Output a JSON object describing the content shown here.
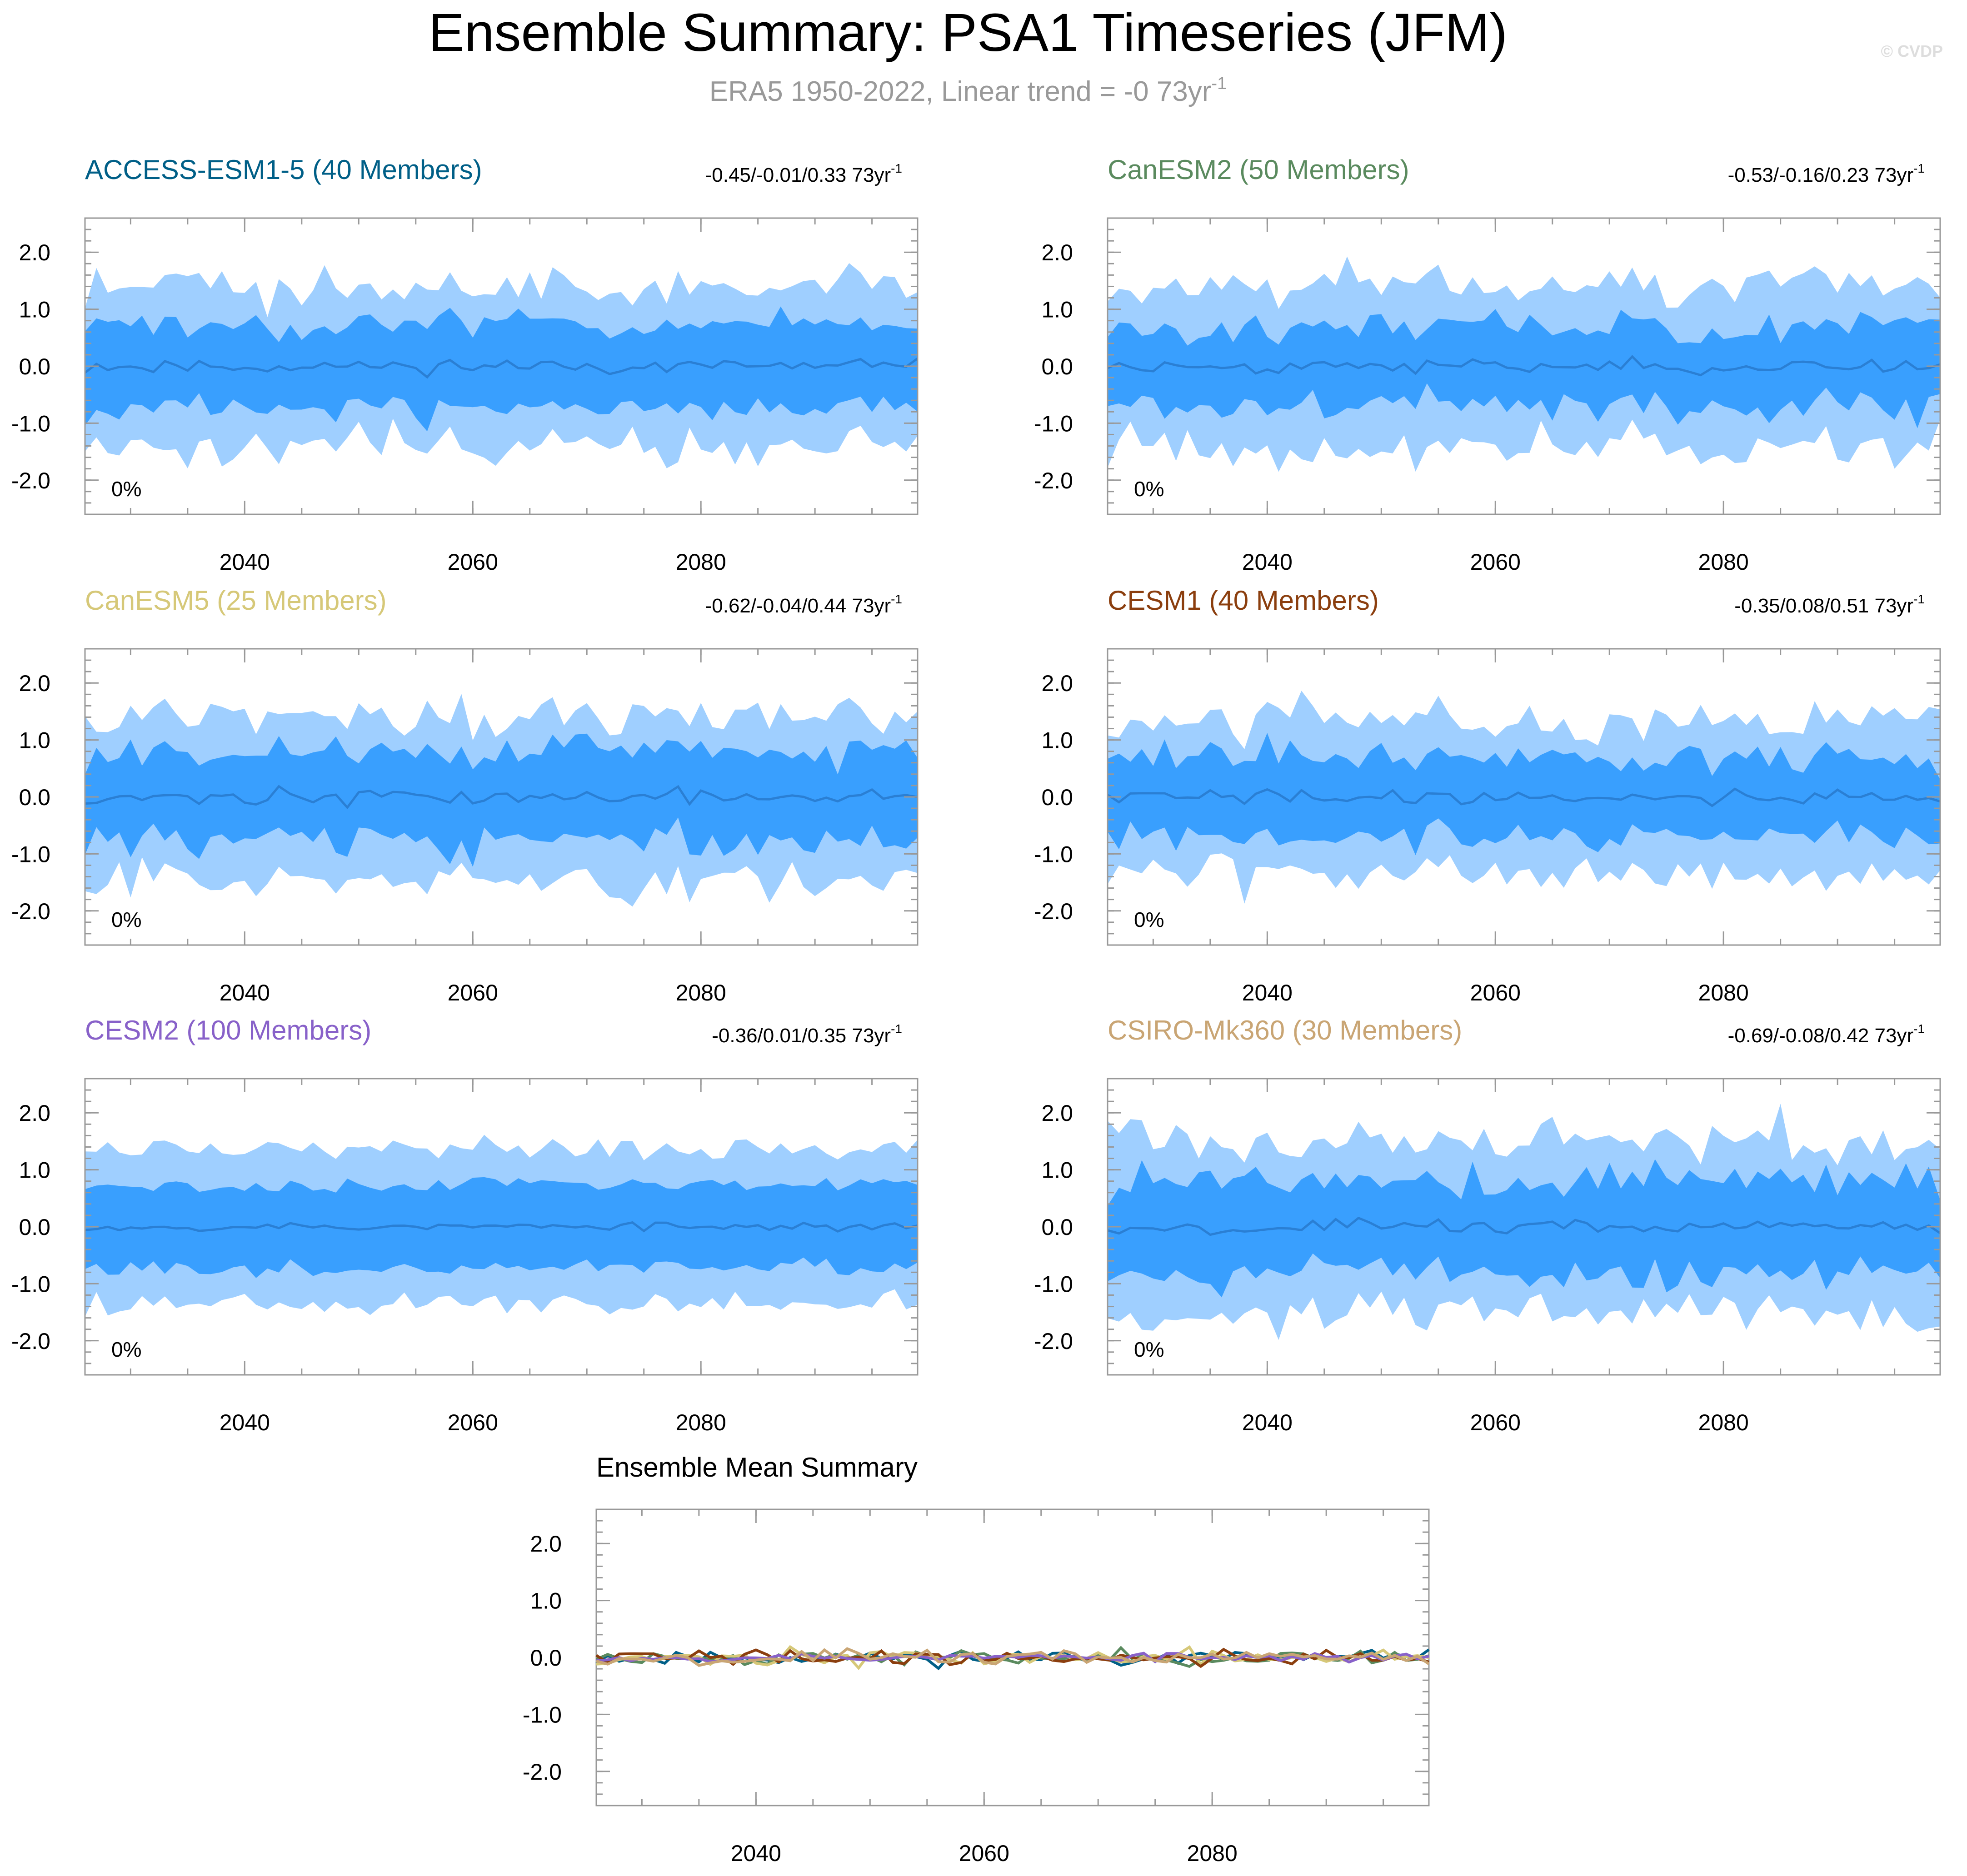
{
  "page": {
    "title": "Ensemble Summary: PSA1 Timeseries (JFM)",
    "subtitle_main": "ERA5 1950-2022, Linear trend = -0 73yr",
    "subtitle_sup": "-1",
    "watermark": "© CVDP"
  },
  "chart_data": [
    {
      "type": "area",
      "title": "ACCESS-ESM1-5 (40 Members)",
      "title_color": "#005f87",
      "trend_text": "-0.45/-0.01/0.33 73yr",
      "trend_sup": "-1",
      "corner_label": "0%",
      "x_start": 2026,
      "x_end": 2099,
      "ylim": [
        -2.6,
        2.6
      ],
      "y_ticks": [
        2.0,
        1.0,
        0.0,
        -1.0,
        -2.0
      ],
      "y_tick_labels": [
        "2.0",
        "1.0",
        "0.0",
        "-1.0",
        "-2.0"
      ],
      "x_ticks": [
        2040,
        2060,
        2080
      ],
      "x_tick_labels": [
        "2040",
        "2060",
        "2080"
      ],
      "outer_color": "#9fcfff",
      "inner_color": "#399ffe",
      "mean_color": "#2a7fd4",
      "seed": 11,
      "mean_amp": 0.12,
      "inner_half": 0.72,
      "outer_half": 1.42,
      "noise": 0.32
    },
    {
      "type": "area",
      "title": "CanESM2 (50 Members)",
      "title_color": "#5a8a5e",
      "trend_text": "-0.53/-0.16/0.23 73yr",
      "trend_sup": "-1",
      "corner_label": "0%",
      "x_start": 2026,
      "x_end": 2099,
      "ylim": [
        -2.6,
        2.6
      ],
      "y_ticks": [
        2.0,
        1.0,
        0.0,
        -1.0,
        -2.0
      ],
      "y_tick_labels": [
        "2.0",
        "1.0",
        "0.0",
        "-1.0",
        "-2.0"
      ],
      "x_ticks": [
        2040,
        2060,
        2080
      ],
      "x_tick_labels": [
        "2040",
        "2060",
        "2080"
      ],
      "outer_color": "#9fcfff",
      "inner_color": "#399ffe",
      "mean_color": "#2a7fd4",
      "seed": 23,
      "mean_amp": 0.12,
      "inner_half": 0.7,
      "outer_half": 1.4,
      "noise": 0.32
    },
    {
      "type": "area",
      "title": "CanESM5 (25 Members)",
      "title_color": "#d6c878",
      "trend_text": "-0.62/-0.04/0.44 73yr",
      "trend_sup": "-1",
      "corner_label": "0%",
      "x_start": 2026,
      "x_end": 2099,
      "ylim": [
        -2.6,
        2.6
      ],
      "y_ticks": [
        2.0,
        1.0,
        0.0,
        -1.0,
        -2.0
      ],
      "y_tick_labels": [
        "2.0",
        "1.0",
        "0.0",
        "-1.0",
        "-2.0"
      ],
      "x_ticks": [
        2040,
        2060,
        2080
      ],
      "x_tick_labels": [
        "2040",
        "2060",
        "2080"
      ],
      "outer_color": "#9fcfff",
      "inner_color": "#399ffe",
      "mean_color": "#2a7fd4",
      "seed": 37,
      "mean_amp": 0.14,
      "inner_half": 0.78,
      "outer_half": 1.45,
      "noise": 0.36
    },
    {
      "type": "area",
      "title": "CESM1 (40 Members)",
      "title_color": "#8b3e0e",
      "trend_text": "-0.35/0.08/0.51 73yr",
      "trend_sup": "-1",
      "corner_label": "0%",
      "x_start": 2026,
      "x_end": 2099,
      "ylim": [
        -2.6,
        2.6
      ],
      "y_ticks": [
        2.0,
        1.0,
        0.0,
        -1.0,
        -2.0
      ],
      "y_tick_labels": [
        "2.0",
        "1.0",
        "0.0",
        "-1.0",
        "-2.0"
      ],
      "x_ticks": [
        2040,
        2060,
        2080
      ],
      "x_tick_labels": [
        "2040",
        "2060",
        "2080"
      ],
      "outer_color": "#9fcfff",
      "inner_color": "#399ffe",
      "mean_color": "#2a7fd4",
      "seed": 41,
      "mean_amp": 0.13,
      "inner_half": 0.7,
      "outer_half": 1.35,
      "noise": 0.34
    },
    {
      "type": "area",
      "title": "CESM2 (100 Members)",
      "title_color": "#8861c9",
      "trend_text": "-0.36/0.01/0.35 73yr",
      "trend_sup": "-1",
      "corner_label": "0%",
      "x_start": 2026,
      "x_end": 2099,
      "ylim": [
        -2.6,
        2.6
      ],
      "y_ticks": [
        2.0,
        1.0,
        0.0,
        -1.0,
        -2.0
      ],
      "y_tick_labels": [
        "2.0",
        "1.0",
        "0.0",
        "-1.0",
        "-2.0"
      ],
      "x_ticks": [
        2040,
        2060,
        2080
      ],
      "x_tick_labels": [
        "2040",
        "2060",
        "2080"
      ],
      "outer_color": "#9fcfff",
      "inner_color": "#399ffe",
      "mean_color": "#2a7fd4",
      "seed": 53,
      "mean_amp": 0.07,
      "inner_half": 0.72,
      "outer_half": 1.35,
      "noise": 0.18
    },
    {
      "type": "area",
      "title": "CSIRO-Mk360 (30 Members)",
      "title_color": "#c9a574",
      "trend_text": "-0.69/-0.08/0.42 73yr",
      "trend_sup": "-1",
      "corner_label": "0%",
      "x_start": 2026,
      "x_end": 2099,
      "ylim": [
        -2.6,
        2.6
      ],
      "y_ticks": [
        2.0,
        1.0,
        0.0,
        -1.0,
        -2.0
      ],
      "y_tick_labels": [
        "2.0",
        "1.0",
        "0.0",
        "-1.0",
        "-2.0"
      ],
      "x_ticks": [
        2040,
        2060,
        2080
      ],
      "x_tick_labels": [
        "2040",
        "2060",
        "2080"
      ],
      "outer_color": "#9fcfff",
      "inner_color": "#399ffe",
      "mean_color": "#2a7fd4",
      "seed": 67,
      "mean_amp": 0.13,
      "inner_half": 0.8,
      "outer_half": 1.5,
      "noise": 0.38
    },
    {
      "type": "line",
      "title": "Ensemble Mean Summary",
      "title_color": "#000000",
      "x_start": 2026,
      "x_end": 2099,
      "ylim": [
        -2.6,
        2.6
      ],
      "y_ticks": [
        2.0,
        1.0,
        0.0,
        -1.0,
        -2.0
      ],
      "y_tick_labels": [
        "2.0",
        "1.0",
        "0.0",
        "-1.0",
        "-2.0"
      ],
      "x_ticks": [
        2040,
        2060,
        2080
      ],
      "x_tick_labels": [
        "2040",
        "2060",
        "2080"
      ],
      "series": [
        {
          "name": "ACCESS-ESM1-5",
          "color": "#005f87",
          "seed": 11,
          "amp": 0.12
        },
        {
          "name": "CanESM2",
          "color": "#5a8a5e",
          "seed": 23,
          "amp": 0.12
        },
        {
          "name": "CanESM5",
          "color": "#d6c878",
          "seed": 37,
          "amp": 0.14
        },
        {
          "name": "CESM1",
          "color": "#8b3e0e",
          "seed": 41,
          "amp": 0.13
        },
        {
          "name": "CESM2",
          "color": "#8861c9",
          "seed": 53,
          "amp": 0.07
        },
        {
          "name": "CSIRO-Mk360",
          "color": "#c9a574",
          "seed": 67,
          "amp": 0.13
        }
      ]
    }
  ]
}
